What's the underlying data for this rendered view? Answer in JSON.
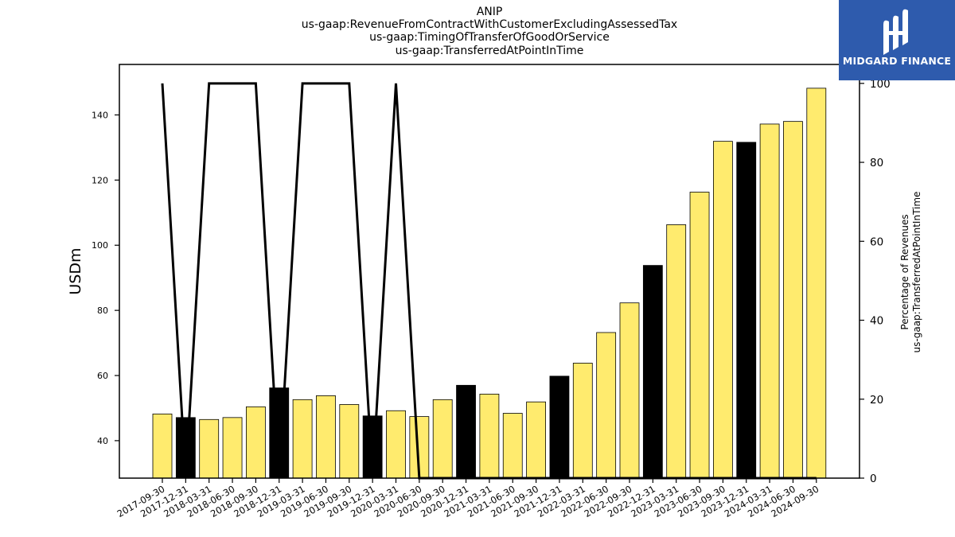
{
  "title_lines": [
    "ANIP",
    "us-gaap:RevenueFromContractWithCustomerExcludingAssessedTax",
    "us-gaap:TimingOfTransferOfGoodOrService",
    "us-gaap:TransferredAtPointInTime"
  ],
  "logo": {
    "text": "MIDGARD FINANCE",
    "bg_color": "#2e5bad"
  },
  "colors": {
    "bar_regular": "#ffeb6e",
    "bar_highlight": "#000000",
    "line": "#000000"
  },
  "chart_data": {
    "type": "bar",
    "categories": [
      "2017-09-30",
      "2017-12-31",
      "2018-03-31",
      "2018-06-30",
      "2018-09-30",
      "2018-12-31",
      "2019-03-31",
      "2019-06-30",
      "2019-09-30",
      "2019-12-31",
      "2020-03-31",
      "2020-06-30",
      "2020-09-30",
      "2020-12-31",
      "2021-03-31",
      "2021-06-30",
      "2021-09-30",
      "2021-12-31",
      "2022-03-31",
      "2022-06-30",
      "2022-09-30",
      "2022-12-31",
      "2023-03-31",
      "2023-06-30",
      "2023-09-30",
      "2023-12-31",
      "2024-03-31",
      "2024-06-30",
      "2024-09-30"
    ],
    "series": [
      {
        "axis": "left",
        "type": "bar",
        "values": [
          48.2,
          47.1,
          46.5,
          47.1,
          50.4,
          56.2,
          52.6,
          53.8,
          51.1,
          47.6,
          49.2,
          47.4,
          52.6,
          57.0,
          54.3,
          48.4,
          51.9,
          59.8,
          63.8,
          73.2,
          82.3,
          93.8,
          106.3,
          116.3,
          131.9,
          131.6,
          137.2,
          138.0,
          148.2
        ],
        "highlight": [
          false,
          true,
          false,
          false,
          false,
          true,
          false,
          false,
          false,
          true,
          false,
          false,
          false,
          true,
          false,
          false,
          false,
          true,
          false,
          false,
          false,
          true,
          false,
          false,
          false,
          true,
          false,
          false,
          false
        ]
      },
      {
        "axis": "right",
        "type": "line",
        "values": [
          100,
          0,
          100,
          100,
          100,
          0,
          100,
          100,
          100,
          0,
          100,
          0,
          0,
          0,
          0,
          0,
          0,
          0,
          0,
          0,
          0,
          0,
          0,
          0,
          0,
          0,
          0,
          0,
          0
        ]
      }
    ],
    "ylabel": "USDm",
    "y2label_lines": [
      "Percentage of Revenues",
      "us-gaap:TransferredAtPointInTime"
    ],
    "ylim": [
      28.5,
      155.5
    ],
    "y2lim": [
      0,
      104.8
    ],
    "yticks": [
      40,
      60,
      80,
      100,
      120,
      140
    ],
    "y2ticks": [
      0,
      20,
      40,
      60,
      80,
      100
    ],
    "grid": false
  }
}
